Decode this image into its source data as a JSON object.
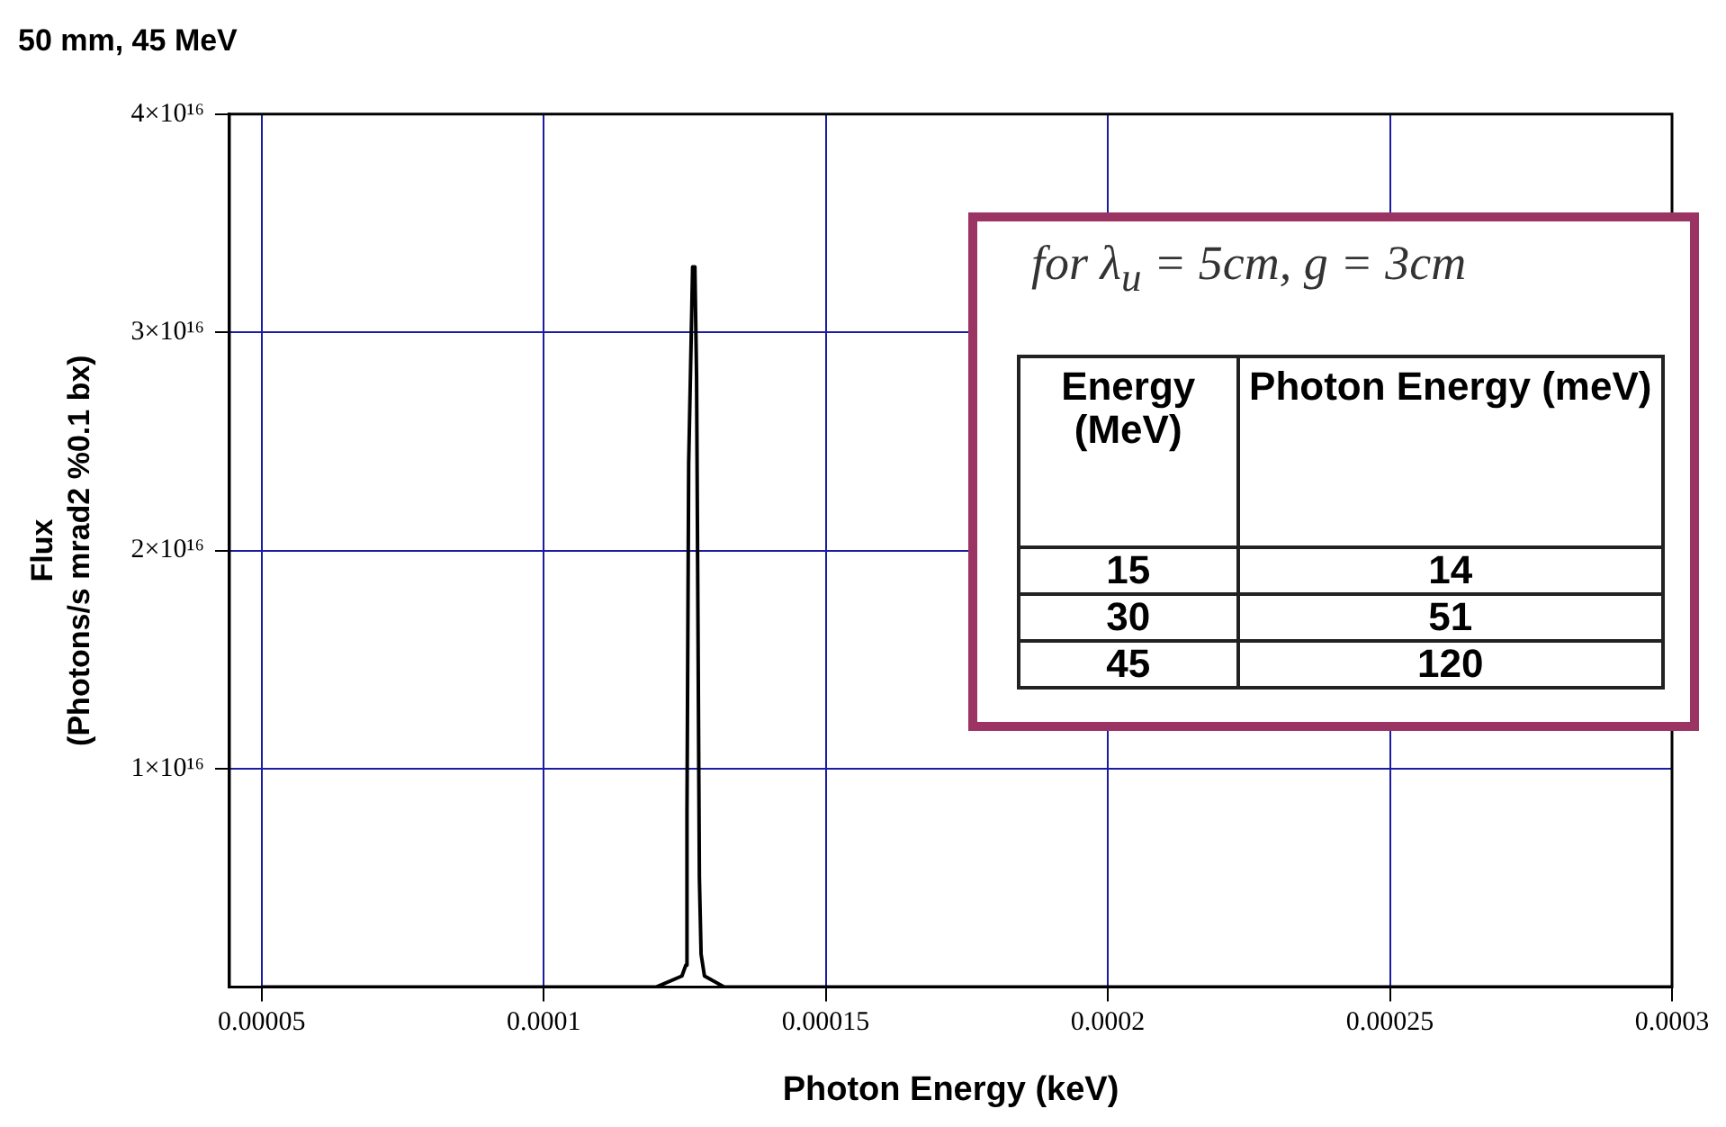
{
  "chart_data": {
    "type": "line",
    "title": "50 mm, 45 MeV",
    "xlabel": "Photon Energy (keV)",
    "ylabel": "Flux\n(Photons/s mrad2 %0.1 bx)",
    "x": [
      5e-05,
      0.0001,
      0.00012,
      0.0001245,
      0.0001252,
      0.0001254,
      0.0001257,
      0.0001264,
      0.0001268,
      0.0001271,
      0.0001276,
      0.0001279,
      0.0001285,
      0.000132,
      0.00014,
      0.0003
    ],
    "series": [
      {
        "color": "#000000",
        "values": [
          0,
          0,
          0,
          500000000000000.0,
          1000000000000000.0,
          8000000000000000.0,
          2.4e+16,
          3.3e+16,
          3.3e+16,
          2.8e+16,
          5000000000000000.0,
          1500000000000000.0,
          500000000000000.0,
          0,
          0,
          0
        ]
      }
    ],
    "xlim": [
      4.43e-05,
      0.0003
    ],
    "xticks": [
      {
        "value": 5e-05,
        "label": "0.00005"
      },
      0.0001,
      0.00015,
      0.0002,
      0.00025,
      0.0003
    ],
    "ylim": [
      0,
      4e+16
    ],
    "yticks": [
      {
        "value": 1e+16,
        "label": "1×10¹⁶"
      },
      {
        "value": 2e+16,
        "label": "2×10¹⁶"
      },
      {
        "value": 3e+16,
        "label": "3×10¹⁶"
      },
      {
        "value": 4e+16,
        "label": "4×10¹⁶"
      }
    ],
    "grid": true,
    "legend": false,
    "marker": "none",
    "line_style": "solid",
    "annotations": [
      "for λ$_{u}$ = 5cm, g = 3cm",
      "Energy (MeV)",
      "Photon Energy (meV)",
      "15",
      "14",
      "30",
      "51",
      "45",
      "120"
    ]
  }
}
